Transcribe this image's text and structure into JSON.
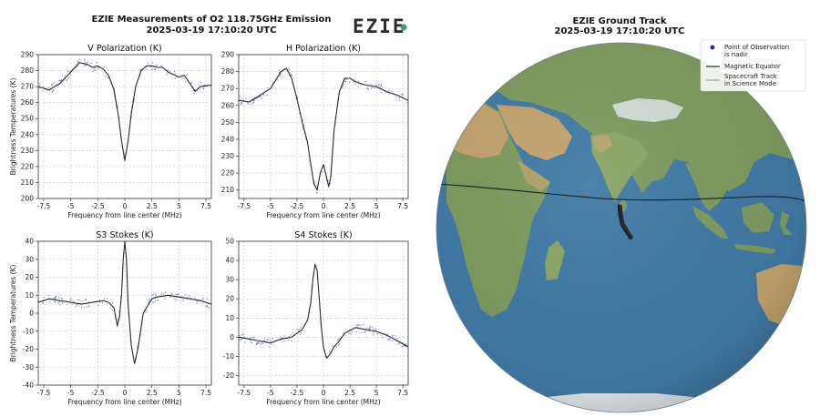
{
  "left_title": "EZIE Measurements of O2 118.75GHz Emission",
  "left_timestamp": "2025-03-19 17:10:20 UTC",
  "logo_text": "EZIE",
  "right_title": "EZIE Ground Track",
  "right_timestamp": "2025-03-19 17:10:20 UTC",
  "legend": {
    "point": "Point of Observation\nis nadir",
    "equator": "Magnetic Equator",
    "track": "Spacecraft Track\nin Science Mode"
  },
  "colors": {
    "line": "#2a2a2a",
    "dots": "#5a6fd1",
    "grid": "#c8c8c8",
    "ocean": "#3f7aa6",
    "land": "#7d9a5e",
    "desert": "#c2a36d",
    "ice": "#dfe6ea",
    "equator": "#1a1a1a",
    "track": "#2a2a2a"
  },
  "chart_data": [
    {
      "type": "line",
      "title": "V Polarization (K)",
      "xlabel": "Frequency from line center (MHz)",
      "ylabel": "Brightness Temperatures (K)",
      "xlim": [
        -8,
        8
      ],
      "ylim": [
        200,
        290
      ],
      "xticks": [
        -7.5,
        -5.0,
        -2.5,
        0.0,
        2.5,
        5.0,
        7.5
      ],
      "yticks": [
        200,
        210,
        220,
        230,
        240,
        250,
        260,
        270,
        280,
        290
      ],
      "grid": true,
      "series": [
        {
          "x": [
            -8,
            -7,
            -6,
            -5,
            -4.2,
            -3.5,
            -3,
            -2.5,
            -2,
            -1.5,
            -1,
            -0.6,
            -0.3,
            0,
            0.3,
            0.6,
            1,
            1.5,
            2,
            2.5,
            3,
            3.5,
            4,
            5,
            5.5,
            6,
            6.5,
            7,
            8
          ],
          "y": [
            270,
            268,
            272,
            279,
            285,
            284,
            282,
            283,
            281,
            277,
            268,
            252,
            236,
            224,
            236,
            253,
            270,
            280,
            283,
            283,
            282,
            282,
            279,
            276,
            277,
            272,
            267,
            270,
            271
          ]
        }
      ]
    },
    {
      "type": "line",
      "title": "H Polarization (K)",
      "xlabel": "Frequency from line center (MHz)",
      "ylabel": "",
      "xlim": [
        -8,
        8
      ],
      "ylim": [
        205,
        290
      ],
      "xticks": [
        -7.5,
        -5.0,
        -2.5,
        0.0,
        2.5,
        5.0,
        7.5
      ],
      "yticks": [
        210,
        220,
        230,
        240,
        250,
        260,
        270,
        280,
        290
      ],
      "grid": true,
      "series": [
        {
          "x": [
            -8,
            -7,
            -6,
            -5,
            -4.5,
            -4,
            -3.5,
            -3,
            -2.5,
            -2,
            -1.5,
            -1.2,
            -0.9,
            -0.6,
            -0.3,
            0,
            0.2,
            0.5,
            0.7,
            1,
            1.5,
            2,
            2.5,
            3,
            4,
            5,
            6,
            7,
            8
          ],
          "y": [
            263,
            262,
            266,
            270,
            275,
            280,
            282,
            276,
            264,
            250,
            238,
            225,
            214,
            210,
            220,
            225,
            220,
            212,
            218,
            245,
            268,
            276,
            276,
            274,
            272,
            271,
            268,
            266,
            263
          ]
        }
      ]
    },
    {
      "type": "line",
      "title": "S3 Stokes (K)",
      "xlabel": "Frequency from line center (MHz)",
      "ylabel": "Brightness Temperatures (K)",
      "xlim": [
        -8,
        8
      ],
      "ylim": [
        -40,
        40
      ],
      "xticks": [
        -7.5,
        -5.0,
        -2.5,
        0.0,
        2.5,
        5.0,
        7.5
      ],
      "yticks": [
        -40,
        -30,
        -20,
        -10,
        0,
        10,
        20,
        30,
        40
      ],
      "grid": true,
      "series": [
        {
          "x": [
            -8,
            -7,
            -6,
            -5,
            -4,
            -3,
            -2,
            -1.5,
            -1,
            -0.7,
            -0.5,
            -0.3,
            -0.15,
            0,
            0.15,
            0.3,
            0.6,
            0.9,
            1.2,
            1.7,
            2.5,
            3,
            4,
            5,
            6,
            7,
            8
          ],
          "y": [
            6,
            8,
            7,
            6,
            5,
            6,
            7,
            6,
            3,
            -7,
            -2,
            10,
            30,
            42,
            30,
            5,
            -18,
            -28,
            -20,
            0,
            8,
            9,
            10,
            9,
            8,
            7,
            5
          ]
        }
      ]
    },
    {
      "type": "line",
      "title": "S4 Stokes (K)",
      "xlabel": "Frequency from line center (MHz)",
      "ylabel": "",
      "xlim": [
        -8,
        8
      ],
      "ylim": [
        -25,
        50
      ],
      "xticks": [
        -7.5,
        -5.0,
        -2.5,
        0.0,
        2.5,
        5.0,
        7.5
      ],
      "yticks": [
        -20,
        -10,
        0,
        10,
        20,
        30,
        40,
        50
      ],
      "grid": true,
      "series": [
        {
          "x": [
            -8,
            -7,
            -6,
            -5,
            -4,
            -3,
            -2.5,
            -2,
            -1.5,
            -1.2,
            -1,
            -0.8,
            -0.6,
            -0.4,
            -0.2,
            0,
            0.3,
            0.6,
            1,
            1.5,
            2,
            3,
            4,
            5,
            6,
            7,
            8
          ],
          "y": [
            0,
            -1,
            -2,
            -3,
            -1,
            0,
            2,
            4,
            9,
            18,
            30,
            38,
            35,
            20,
            5,
            -5,
            -11,
            -9,
            -5,
            -2,
            2,
            5,
            4,
            3,
            1,
            -2,
            -5
          ]
        }
      ]
    }
  ]
}
